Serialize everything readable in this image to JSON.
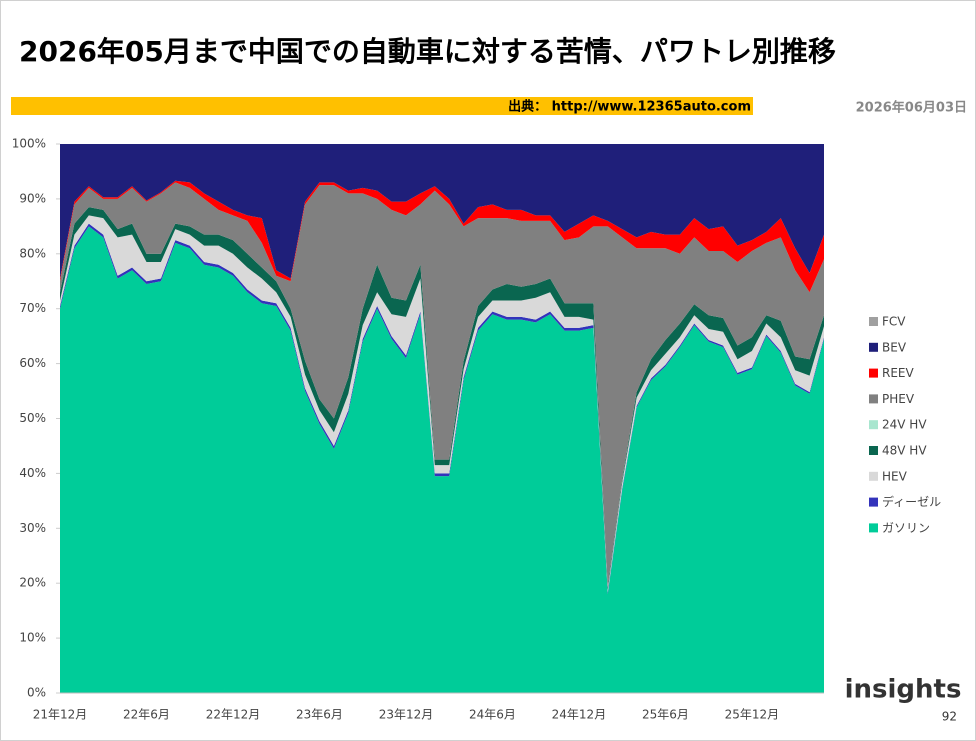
{
  "header": {
    "title": "2026年05月まで中国での自動車に対する苦情、パワトレ別推移",
    "source": "出典： http://www.12365auto.com",
    "date": "2026年06月03日"
  },
  "footer": {
    "page": "92",
    "logo": "insights"
  },
  "chart_data": {
    "type": "stacked-area",
    "categories": [
      "21年12月",
      null,
      null,
      null,
      null,
      null,
      "22年6月",
      null,
      null,
      null,
      null,
      null,
      "22年12月",
      null,
      null,
      null,
      null,
      null,
      "23年6月",
      null,
      null,
      null,
      null,
      null,
      "23年12月",
      null,
      null,
      null,
      null,
      null,
      "24年6月",
      null,
      null,
      null,
      null,
      null,
      "24年12月",
      null,
      null,
      null,
      null,
      null,
      "25年6月",
      null,
      null,
      null,
      null,
      null,
      "25年12月",
      null,
      null,
      null,
      null,
      null
    ],
    "ylim": [
      0,
      100
    ],
    "yticks": [
      {
        "value": 0,
        "label": "0%"
      },
      {
        "value": 10,
        "label": "10%"
      },
      {
        "value": 20,
        "label": "20%"
      },
      {
        "value": 30,
        "label": "30%"
      },
      {
        "value": 40,
        "label": "40%"
      },
      {
        "value": 50,
        "label": "50%"
      },
      {
        "value": 60,
        "label": "60%"
      },
      {
        "value": 70,
        "label": "70%"
      },
      {
        "value": 80,
        "label": "80%"
      },
      {
        "value": 90,
        "label": "90%"
      },
      {
        "value": 100,
        "label": "100%"
      }
    ],
    "series": [
      {
        "name": "ガソリン",
        "color": "#00cc99",
        "values": [
          70,
          81,
          85,
          83,
          75.5,
          77,
          74.5,
          75,
          82,
          81,
          78,
          77.5,
          76,
          73,
          71,
          70.5,
          66,
          55,
          49,
          44.5,
          51,
          64,
          70,
          64.5,
          61,
          69,
          39.5,
          39.5,
          57,
          66,
          69,
          68,
          68,
          67.5,
          69,
          66,
          66,
          66.5,
          18,
          37,
          52,
          57,
          59.5,
          63,
          67,
          64,
          63,
          58,
          59,
          65,
          62,
          56,
          54.5,
          64.5
        ]
      },
      {
        "name": "ディーゼル",
        "color": "#3333bb",
        "values": [
          0.5,
          0.5,
          0.5,
          0.5,
          0.5,
          0.5,
          0.5,
          0.5,
          0.5,
          0.5,
          0.5,
          0.5,
          0.5,
          0.5,
          0.5,
          0.5,
          0.5,
          0.5,
          0.5,
          0.5,
          0.5,
          0.5,
          0.5,
          0.5,
          0.5,
          0.5,
          0.5,
          0.5,
          0.5,
          0.5,
          0.5,
          0.5,
          0.5,
          0.5,
          0.5,
          0.5,
          0.5,
          0.5,
          0.3,
          0.3,
          0.3,
          0.3,
          0.3,
          0.3,
          0.3,
          0.3,
          0.3,
          0.3,
          0.3,
          0.3,
          0.3,
          0.3,
          0.3,
          0.3
        ]
      },
      {
        "name": "HEV",
        "color": "#d9d9d9",
        "values": [
          1,
          2,
          1.5,
          3,
          7,
          6,
          3.5,
          3,
          2,
          2,
          3,
          3.5,
          3.5,
          4,
          4,
          2,
          2,
          2.5,
          2,
          2.5,
          3,
          2.5,
          2.5,
          4,
          7,
          6,
          1.5,
          1.5,
          1.5,
          2,
          2,
          3,
          3,
          4,
          3.5,
          2,
          2,
          1,
          0.5,
          1,
          1.5,
          1.5,
          2,
          1.5,
          1.5,
          2,
          2.5,
          2.5,
          3,
          2,
          2.5,
          2.5,
          3,
          2
        ]
      },
      {
        "name": "48V HV",
        "color": "#0a6650",
        "values": [
          1.5,
          2,
          1.5,
          1.5,
          1.5,
          2,
          1.5,
          1.5,
          1,
          1.5,
          2,
          2,
          2.5,
          2.5,
          2,
          2,
          1.5,
          2.5,
          2,
          2.5,
          3,
          3,
          5,
          3,
          3,
          2.5,
          1,
          1,
          1.5,
          2,
          2,
          3,
          2.5,
          2.5,
          2.5,
          2.5,
          2.5,
          3,
          0.5,
          0.5,
          1,
          2,
          2.5,
          2.5,
          2,
          2.5,
          2.5,
          2.5,
          2.5,
          1.5,
          3,
          2.5,
          3,
          2
        ]
      },
      {
        "name": "24V HV",
        "color": "#a8e6cf",
        "values": [
          0,
          0,
          0,
          0,
          0,
          0,
          0,
          0,
          0,
          0,
          0,
          0,
          0,
          0,
          0,
          0,
          0,
          0,
          0,
          0,
          0,
          0,
          0,
          0,
          0,
          0,
          0,
          0,
          0,
          0,
          0,
          0,
          0,
          0,
          0,
          0,
          0,
          0,
          0,
          0,
          0,
          0,
          0,
          0,
          0,
          0,
          0,
          0,
          0,
          0,
          0,
          0,
          0,
          0
        ]
      },
      {
        "name": "PHEV",
        "color": "#808080",
        "values": [
          2,
          3.5,
          3.5,
          2,
          5.5,
          6.5,
          9.5,
          11,
          7.5,
          7,
          6.5,
          4.5,
          4.5,
          6,
          4.5,
          1,
          5,
          28.5,
          39,
          42.5,
          33.5,
          21,
          12,
          16,
          15.5,
          11,
          49,
          46.5,
          24.5,
          16,
          13,
          12,
          12,
          11.5,
          10.5,
          11.5,
          12,
          14,
          65.7,
          44.2,
          26.2,
          20.2,
          16.7,
          12.7,
          12.2,
          11.7,
          12.2,
          15.2,
          15.7,
          13.2,
          15.2,
          15.7,
          12.2,
          10.2
        ]
      },
      {
        "name": "REEV",
        "color": "#ff0000",
        "values": [
          0.5,
          0.5,
          0.3,
          0.3,
          0.3,
          0.3,
          0.2,
          0.2,
          0.3,
          1,
          1,
          1.5,
          1,
          1,
          4.5,
          1,
          0.5,
          0.5,
          0.5,
          0.5,
          0.5,
          1,
          1.5,
          1.5,
          2.5,
          2,
          0.8,
          1,
          0.5,
          2,
          2.5,
          1.5,
          2,
          1,
          1,
          1.5,
          2.5,
          2,
          1,
          1.5,
          2,
          3,
          2.5,
          3.5,
          3.5,
          4,
          4.5,
          3,
          2,
          2,
          3.5,
          4,
          3.5,
          4.5
        ]
      },
      {
        "name": "BEV",
        "color": "#1f1f7a",
        "values": [
          24.5,
          10.5,
          7.7,
          9.7,
          9.7,
          7.7,
          10.3,
          8.8,
          6.7,
          7,
          9,
          10.5,
          12,
          13,
          13.5,
          23,
          24.5,
          10.5,
          7,
          7,
          8.5,
          8,
          8.5,
          10.5,
          10.5,
          9,
          7.7,
          10,
          14.5,
          11.5,
          11,
          12,
          12,
          13,
          13,
          16,
          14.5,
          13,
          14,
          15.5,
          17,
          16,
          16.5,
          16.5,
          13.5,
          15.5,
          15,
          18.5,
          17.5,
          16,
          13.5,
          19,
          23.5,
          16.5
        ]
      },
      {
        "name": "FCV",
        "color": "#a0a0a0",
        "values": [
          0,
          0,
          0,
          0,
          0,
          0,
          0,
          0,
          0,
          0,
          0,
          0,
          0,
          0,
          0,
          0,
          0,
          0,
          0,
          0,
          0,
          0,
          0,
          0,
          0,
          0,
          0,
          0,
          0,
          0,
          0,
          0,
          0,
          0,
          0,
          0,
          0,
          0,
          0,
          0,
          0,
          0,
          0,
          0,
          0,
          0,
          0,
          0,
          0,
          0,
          0,
          0,
          0,
          0
        ]
      }
    ]
  }
}
